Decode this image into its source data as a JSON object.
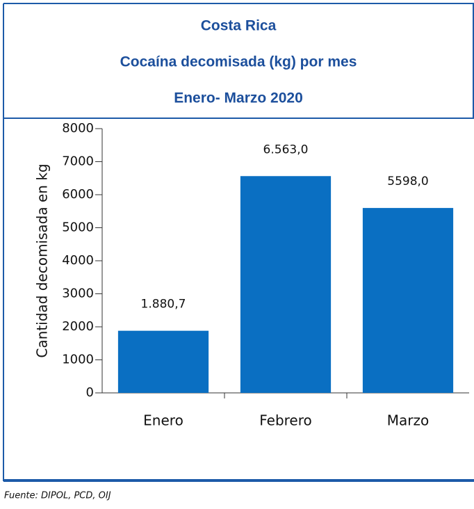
{
  "chart_data": {
    "type": "bar",
    "title": "Costa Rica",
    "subtitle": "Cocaína decomisada (kg) por mes",
    "period": "Enero- Marzo 2020",
    "y_label": "Cantidad decomisada en kg",
    "categories": [
      "Enero",
      "Febrero",
      "Marzo"
    ],
    "values": [
      1880.7,
      6563.0,
      5598.0
    ],
    "value_labels": [
      "1.880,7",
      "6.563,0",
      "5598,0"
    ],
    "color": "#0a6fc2",
    "ylim": [
      0,
      8000
    ],
    "yticks": [
      0,
      1000,
      2000,
      3000,
      4000,
      5000,
      6000,
      7000,
      8000
    ],
    "source": "Fuente: DIPOL, PCD, OIJ"
  }
}
